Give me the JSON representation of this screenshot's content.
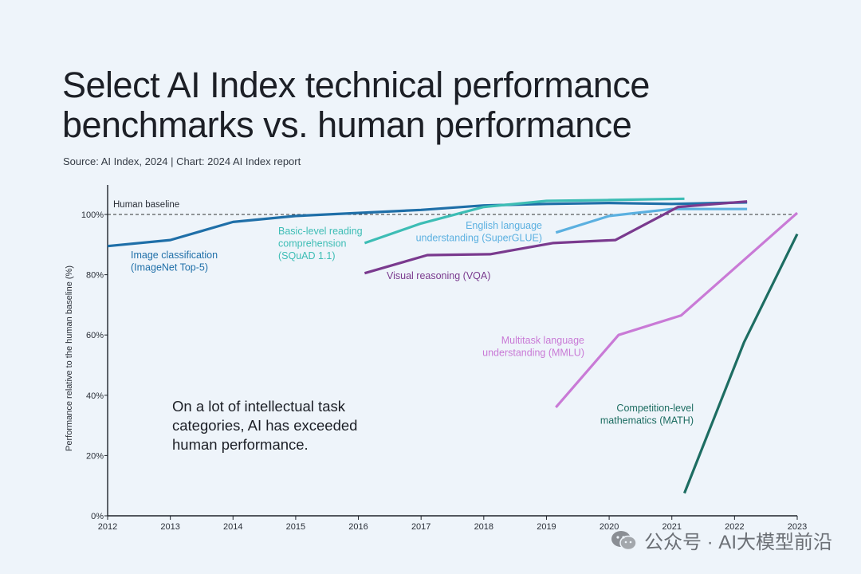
{
  "title_line1": "Select AI Index technical performance",
  "title_line2": "benchmarks vs. human performance",
  "source": "Source: AI Index, 2024 | Chart: 2024 AI Index report",
  "watermark": "公众号 · AI大模型前沿",
  "colors": {
    "background": "#eef4fa",
    "axis": "#1e232b",
    "imagenet": "#1f6fa8",
    "squad": "#3dbdb5",
    "superglue": "#5bb0e0",
    "vqa": "#7a3a8e",
    "mmlu": "#c97ad6",
    "math": "#1d6d62"
  },
  "chart_data": {
    "type": "line",
    "title": "Select AI Index technical performance benchmarks vs. human performance",
    "xlabel": "",
    "ylabel": "Performance relative to the human baseline (%)",
    "xlim": [
      2012,
      2023
    ],
    "ylim": [
      0,
      110
    ],
    "x_ticks": [
      "2012",
      "2013",
      "2014",
      "2015",
      "2016",
      "2017",
      "2018",
      "2019",
      "2020",
      "2021",
      "2022",
      "2023"
    ],
    "y_ticks": [
      {
        "v": 0,
        "label": "0%"
      },
      {
        "v": 20,
        "label": "20%"
      },
      {
        "v": 40,
        "label": "40%"
      },
      {
        "v": 60,
        "label": "60%"
      },
      {
        "v": 80,
        "label": "80%"
      },
      {
        "v": 100,
        "label": "100%"
      }
    ],
    "baseline": {
      "value": 100,
      "label": "Human baseline"
    },
    "annotation": [
      "On a lot of intellectual task",
      "categories, AI has exceeded",
      "human performance."
    ],
    "series": [
      {
        "name": "imagenet",
        "label": [
          "Image classification",
          "(ImageNet Top-5)"
        ],
        "color": "#1f6fa8",
        "x": [
          2012,
          2013,
          2014,
          2015,
          2016,
          2017,
          2018,
          2019,
          2020,
          2021,
          2022.2
        ],
        "y": [
          89.5,
          91.5,
          97.5,
          99.5,
          100.5,
          101.5,
          103,
          103.5,
          103.8,
          103.5,
          104
        ]
      },
      {
        "name": "squad",
        "label": [
          "Basic-level reading",
          "comprehension",
          "(SQuAD 1.1)"
        ],
        "color": "#3dbdb5",
        "x": [
          2016.1,
          2017,
          2018,
          2019,
          2020,
          2021.2
        ],
        "y": [
          90.5,
          97,
          102.5,
          104.5,
          104.8,
          105.2
        ]
      },
      {
        "name": "superglue",
        "label": [
          "English language",
          "understanding (SuperGLUE)"
        ],
        "color": "#5bb0e0",
        "x": [
          2019.15,
          2020,
          2021,
          2022.2
        ],
        "y": [
          94,
          99.5,
          101.8,
          101.8
        ]
      },
      {
        "name": "vqa",
        "label": [
          "Visual reasoning (VQA)"
        ],
        "color": "#7a3a8e",
        "x": [
          2016.1,
          2017.1,
          2018.1,
          2019.1,
          2020.1,
          2021.1,
          2022.2
        ],
        "y": [
          80.5,
          86.5,
          86.8,
          90.5,
          91.5,
          102.5,
          104.3
        ]
      },
      {
        "name": "mmlu",
        "label": [
          "Multitask language",
          "understanding (MMLU)"
        ],
        "color": "#c97ad6",
        "x": [
          2019.15,
          2020.15,
          2021.15,
          2023
        ],
        "y": [
          36,
          60,
          66.5,
          100.5
        ]
      },
      {
        "name": "math",
        "label": [
          "Competition-level",
          "mathematics (MATH)"
        ],
        "color": "#1d6d62",
        "x": [
          2021.2,
          2022.15,
          2023
        ],
        "y": [
          7.5,
          57.5,
          93.5
        ]
      }
    ]
  }
}
